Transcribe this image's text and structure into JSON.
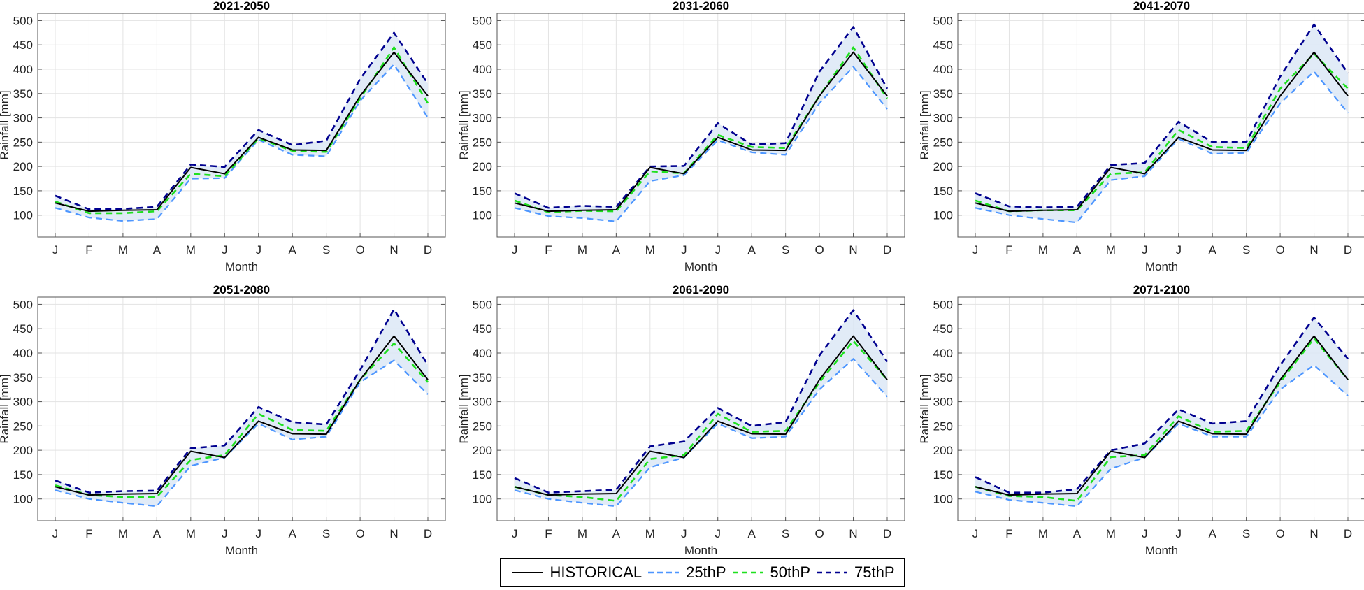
{
  "chart_data": [
    {
      "type": "line",
      "title": "2021-2050",
      "xlabel": "Month",
      "ylabel": "Rainfall [mm]",
      "categories": [
        "J",
        "F",
        "M",
        "A",
        "M",
        "J",
        "J",
        "A",
        "S",
        "O",
        "N",
        "D"
      ],
      "ylim": [
        55,
        515
      ],
      "yticks": [
        100,
        150,
        200,
        250,
        300,
        350,
        400,
        450,
        500
      ],
      "grid": true,
      "series": [
        {
          "name": "HISTORICAL",
          "values": [
            125,
            108,
            110,
            111,
            198,
            185,
            260,
            234,
            233,
            345,
            435,
            345
          ]
        },
        {
          "name": "25thP",
          "values": [
            115,
            95,
            88,
            92,
            175,
            176,
            255,
            224,
            221,
            335,
            410,
            300
          ]
        },
        {
          "name": "50thP",
          "values": [
            128,
            104,
            104,
            108,
            185,
            180,
            258,
            232,
            230,
            340,
            445,
            330
          ]
        },
        {
          "name": "75thP",
          "values": [
            140,
            112,
            113,
            117,
            204,
            199,
            275,
            244,
            253,
            380,
            475,
            370
          ]
        }
      ]
    },
    {
      "type": "line",
      "title": "2031-2060",
      "xlabel": "Month",
      "ylabel": "Rainfall [mm]",
      "categories": [
        "J",
        "F",
        "M",
        "A",
        "M",
        "J",
        "J",
        "A",
        "S",
        "O",
        "N",
        "D"
      ],
      "ylim": [
        55,
        515
      ],
      "yticks": [
        100,
        150,
        200,
        250,
        300,
        350,
        400,
        450,
        500
      ],
      "grid": true,
      "series": [
        {
          "name": "HISTORICAL",
          "values": [
            125,
            108,
            110,
            111,
            198,
            185,
            260,
            234,
            233,
            345,
            435,
            345
          ]
        },
        {
          "name": "25thP",
          "values": [
            115,
            98,
            94,
            87,
            170,
            182,
            254,
            229,
            224,
            330,
            405,
            318
          ]
        },
        {
          "name": "50thP",
          "values": [
            130,
            106,
            109,
            108,
            190,
            186,
            265,
            240,
            238,
            345,
            445,
            340
          ]
        },
        {
          "name": "75thP",
          "values": [
            145,
            115,
            119,
            117,
            200,
            201,
            289,
            245,
            248,
            395,
            487,
            360
          ]
        }
      ]
    },
    {
      "type": "line",
      "title": "2041-2070",
      "xlabel": "Month",
      "ylabel": "Rainfall [mm]",
      "categories": [
        "J",
        "F",
        "M",
        "A",
        "M",
        "J",
        "J",
        "A",
        "S",
        "O",
        "N",
        "D"
      ],
      "ylim": [
        55,
        515
      ],
      "yticks": [
        100,
        150,
        200,
        250,
        300,
        350,
        400,
        450,
        500
      ],
      "grid": true,
      "series": [
        {
          "name": "HISTORICAL",
          "values": [
            125,
            108,
            110,
            111,
            198,
            185,
            260,
            234,
            233,
            345,
            435,
            345
          ]
        },
        {
          "name": "25thP",
          "values": [
            115,
            100,
            92,
            85,
            172,
            180,
            257,
            226,
            228,
            330,
            395,
            310
          ]
        },
        {
          "name": "50thP",
          "values": [
            130,
            108,
            110,
            110,
            185,
            188,
            275,
            240,
            238,
            360,
            432,
            360
          ]
        },
        {
          "name": "75thP",
          "values": [
            145,
            118,
            116,
            117,
            203,
            207,
            292,
            250,
            250,
            385,
            492,
            392
          ]
        }
      ]
    },
    {
      "type": "line",
      "title": "2051-2080",
      "xlabel": "Month",
      "ylabel": "Rainfall [mm]",
      "categories": [
        "J",
        "F",
        "M",
        "A",
        "M",
        "J",
        "J",
        "A",
        "S",
        "O",
        "N",
        "D"
      ],
      "ylim": [
        55,
        515
      ],
      "yticks": [
        100,
        150,
        200,
        250,
        300,
        350,
        400,
        450,
        500
      ],
      "grid": true,
      "series": [
        {
          "name": "HISTORICAL",
          "values": [
            125,
            108,
            110,
            111,
            198,
            185,
            260,
            234,
            233,
            345,
            435,
            345
          ]
        },
        {
          "name": "25thP",
          "values": [
            118,
            100,
            92,
            85,
            168,
            185,
            255,
            222,
            228,
            340,
            385,
            315
          ]
        },
        {
          "name": "50thP",
          "values": [
            128,
            108,
            104,
            104,
            180,
            190,
            275,
            242,
            240,
            345,
            420,
            340
          ]
        },
        {
          "name": "75thP",
          "values": [
            138,
            113,
            116,
            117,
            204,
            210,
            289,
            258,
            253,
            365,
            490,
            375
          ]
        }
      ]
    },
    {
      "type": "line",
      "title": "2061-2090",
      "xlabel": "Month",
      "ylabel": "Rainfall [mm]",
      "categories": [
        "J",
        "F",
        "M",
        "A",
        "M",
        "J",
        "J",
        "A",
        "S",
        "O",
        "N",
        "D"
      ],
      "ylim": [
        55,
        515
      ],
      "yticks": [
        100,
        150,
        200,
        250,
        300,
        350,
        400,
        450,
        500
      ],
      "grid": true,
      "series": [
        {
          "name": "HISTORICAL",
          "values": [
            125,
            108,
            110,
            111,
            198,
            185,
            260,
            234,
            233,
            345,
            435,
            345
          ]
        },
        {
          "name": "25thP",
          "values": [
            118,
            100,
            92,
            85,
            165,
            185,
            255,
            225,
            228,
            325,
            388,
            310
          ]
        },
        {
          "name": "50thP",
          "values": [
            125,
            108,
            104,
            96,
            182,
            190,
            275,
            238,
            240,
            340,
            425,
            345
          ]
        },
        {
          "name": "75thP",
          "values": [
            143,
            113,
            116,
            119,
            208,
            218,
            287,
            250,
            258,
            395,
            488,
            382
          ]
        }
      ]
    },
    {
      "type": "line",
      "title": "2071-2100",
      "xlabel": "Month",
      "ylabel": "Rainfall [mm]",
      "categories": [
        "J",
        "F",
        "M",
        "A",
        "M",
        "J",
        "J",
        "A",
        "S",
        "O",
        "N",
        "D"
      ],
      "ylim": [
        55,
        515
      ],
      "yticks": [
        100,
        150,
        200,
        250,
        300,
        350,
        400,
        450,
        500
      ],
      "grid": true,
      "series": [
        {
          "name": "HISTORICAL",
          "values": [
            125,
            108,
            110,
            111,
            198,
            185,
            260,
            234,
            233,
            345,
            435,
            345
          ]
        },
        {
          "name": "25thP",
          "values": [
            115,
            98,
            92,
            85,
            162,
            185,
            255,
            228,
            228,
            325,
            375,
            312
          ]
        },
        {
          "name": "50thP",
          "values": [
            125,
            106,
            104,
            96,
            186,
            190,
            270,
            238,
            240,
            340,
            430,
            345
          ]
        },
        {
          "name": "75thP",
          "values": [
            145,
            113,
            113,
            120,
            200,
            214,
            284,
            255,
            260,
            375,
            473,
            388
          ]
        }
      ]
    }
  ],
  "legend": {
    "position": "bottom-center",
    "items": [
      {
        "label": "HISTORICAL",
        "color": "#000000",
        "dash": "solid"
      },
      {
        "label": "25thP",
        "color": "#4d96ff",
        "dash": "dashed"
      },
      {
        "label": "50thP",
        "color": "#1ee01e",
        "dash": "dashed"
      },
      {
        "label": "75thP",
        "color": "#00008f",
        "dash": "dashed"
      }
    ]
  },
  "band_color": "#dce8f6"
}
